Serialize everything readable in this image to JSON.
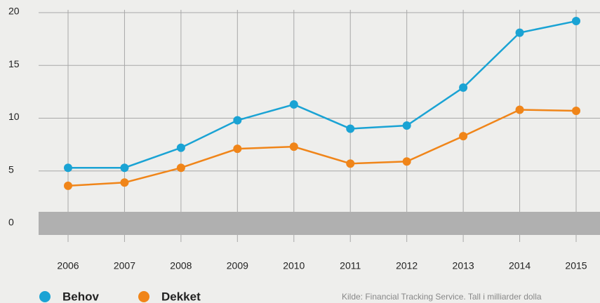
{
  "chart_data": {
    "type": "line",
    "categories": [
      "2006",
      "2007",
      "2008",
      "2009",
      "2010",
      "2011",
      "2012",
      "2013",
      "2014",
      "2015"
    ],
    "series": [
      {
        "name": "Behov",
        "color": "#1aa3d4",
        "values": [
          5.3,
          5.3,
          7.2,
          9.8,
          11.3,
          9.0,
          9.3,
          12.9,
          18.1,
          19.2
        ]
      },
      {
        "name": "Dekket",
        "color": "#f08519",
        "values": [
          3.6,
          3.9,
          5.3,
          7.1,
          7.3,
          5.7,
          5.9,
          8.3,
          10.8,
          10.7
        ]
      }
    ],
    "ylim": [
      0,
      20
    ],
    "yticks": [
      0,
      5,
      10,
      15,
      20
    ],
    "grid": true,
    "source": "Kilde: Financial Tracking Service. Tall i milliarder dolla"
  }
}
